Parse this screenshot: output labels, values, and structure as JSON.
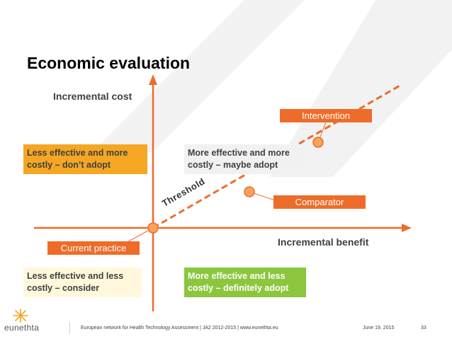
{
  "slide": {
    "title": "Economic evaluation",
    "y_axis_label": "Incremental cost",
    "x_axis_label": "Incremental benefit",
    "threshold_label": "Threshold",
    "quadrants": {
      "top_left": {
        "line1": "Less effective and more",
        "line2": "costly – don’t adopt"
      },
      "top_right": {
        "line1": "More effective and more",
        "line2": "costly – maybe adopt"
      },
      "bottom_left": {
        "line1": "Less effective and less",
        "line2": "costly – consider"
      },
      "bottom_right": {
        "line1": "More effective and less",
        "line2": "costly – definitely adopt"
      }
    },
    "points": {
      "intervention": "Intervention",
      "comparator": "Comparator",
      "current_practice": "Current practice"
    }
  },
  "footer": {
    "logo_text": "eunethta",
    "network_text": "European network for Health Technology Assessment | JA2 2012-2015 | www.eunethta.eu",
    "date": "June 19, 2015",
    "page_number": "33"
  },
  "colors": {
    "accent_orange": "#EE6C29",
    "box_orange": "#F5A623",
    "box_green": "#8BC63E",
    "point_fill": "#F7A35C"
  }
}
